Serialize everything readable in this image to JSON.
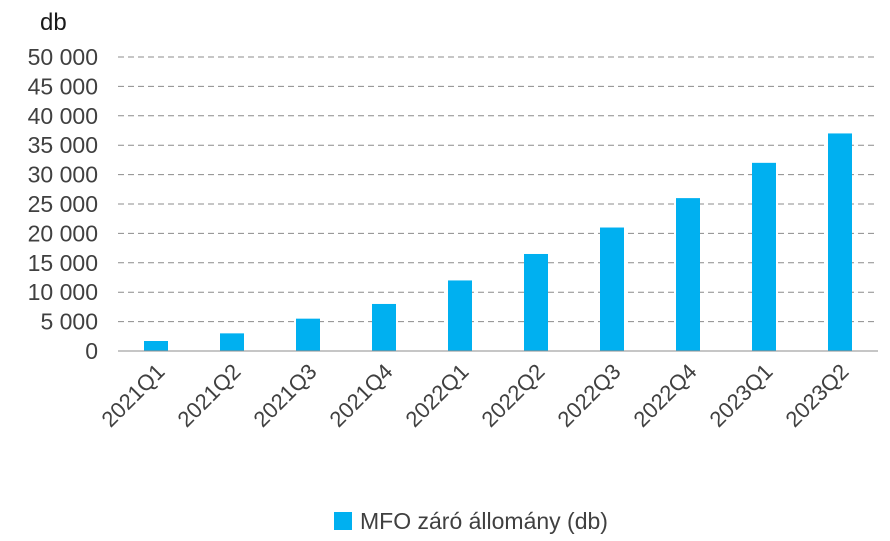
{
  "chart_data": {
    "type": "bar",
    "unit_label": "db",
    "categories": [
      "2021Q1",
      "2021Q2",
      "2021Q3",
      "2021Q4",
      "2022Q1",
      "2022Q2",
      "2022Q3",
      "2022Q4",
      "2023Q1",
      "2023Q2"
    ],
    "series": [
      {
        "name": "MFO záró állomány (db)",
        "color": "#00b0f0",
        "values": [
          1700,
          3000,
          5500,
          8000,
          12000,
          16500,
          21000,
          26000,
          32000,
          37000
        ]
      }
    ],
    "ylim": [
      0,
      50000
    ],
    "yticks": [
      0,
      5000,
      10000,
      15000,
      20000,
      25000,
      30000,
      35000,
      40000,
      45000,
      50000
    ],
    "ytick_labels": [
      "0",
      "5 000",
      "10 000",
      "15 000",
      "20 000",
      "25 000",
      "30 000",
      "35 000",
      "40 000",
      "45 000",
      "50 000"
    ],
    "grid": "horizontal-dashed",
    "legend_position": "bottom-center"
  }
}
